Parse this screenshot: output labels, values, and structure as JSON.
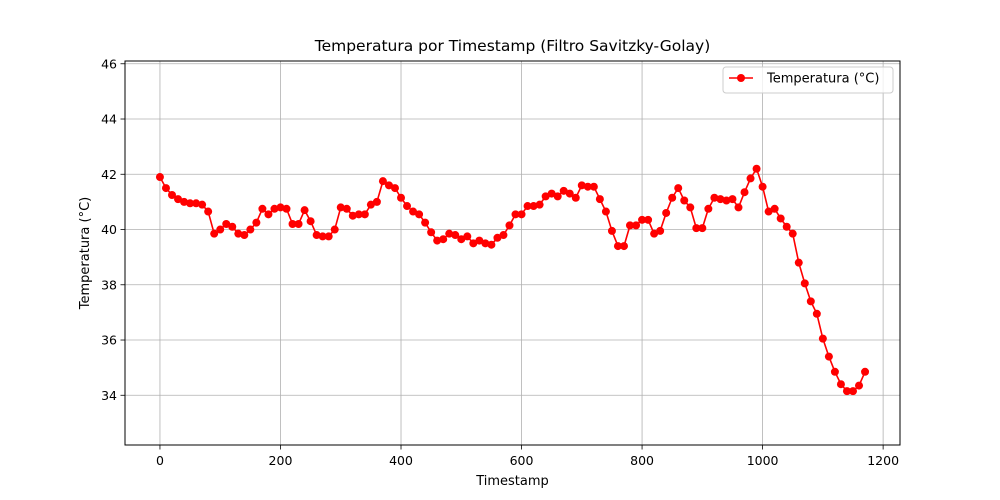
{
  "chart_data": {
    "type": "line",
    "title": "Temperatura por Timestamp (Filtro Savitzky-Golay)",
    "xlabel": "Timestamp",
    "ylabel": "Temperatura (°C)",
    "xlim": [
      -58,
      1228
    ],
    "ylim": [
      32.2,
      46.1
    ],
    "xticks": [
      0,
      200,
      400,
      600,
      800,
      1000,
      1200
    ],
    "yticks": [
      34,
      36,
      38,
      40,
      42,
      44,
      46
    ],
    "grid": true,
    "legend_position": "upper-right",
    "color": "#ff0000",
    "series": [
      {
        "name": "Temperatura (°C)",
        "marker": "circle",
        "x": [
          0,
          10,
          20,
          30,
          40,
          50,
          60,
          70,
          80,
          90,
          100,
          110,
          120,
          130,
          140,
          150,
          160,
          170,
          180,
          190,
          200,
          210,
          220,
          230,
          240,
          250,
          260,
          270,
          280,
          290,
          300,
          310,
          320,
          330,
          340,
          350,
          360,
          370,
          380,
          390,
          400,
          410,
          420,
          430,
          440,
          450,
          460,
          470,
          480,
          490,
          500,
          510,
          520,
          530,
          540,
          550,
          560,
          570,
          580,
          590,
          600,
          610,
          620,
          630,
          640,
          650,
          660,
          670,
          680,
          690,
          700,
          710,
          720,
          730,
          740,
          750,
          760,
          770,
          780,
          790,
          800,
          810,
          820,
          830,
          840,
          850,
          860,
          870,
          880,
          890,
          900,
          910,
          920,
          930,
          940,
          950,
          960,
          970,
          980,
          990,
          1000,
          1010,
          1020,
          1030,
          1040,
          1050,
          1060,
          1070,
          1080,
          1090,
          1100,
          1110,
          1120,
          1130,
          1140,
          1150,
          1160,
          1170
        ],
        "y": [
          41.9,
          41.5,
          41.25,
          41.1,
          41.0,
          40.95,
          40.95,
          40.9,
          40.65,
          39.85,
          40.0,
          40.2,
          40.1,
          39.85,
          39.8,
          40.0,
          40.25,
          40.75,
          40.55,
          40.75,
          40.8,
          40.75,
          40.2,
          40.2,
          40.7,
          40.3,
          39.8,
          39.75,
          39.75,
          40.0,
          40.8,
          40.75,
          40.5,
          40.55,
          40.55,
          40.9,
          41.0,
          41.75,
          41.6,
          41.5,
          41.15,
          40.85,
          40.65,
          40.55,
          40.25,
          39.9,
          39.6,
          39.65,
          39.85,
          39.8,
          39.65,
          39.75,
          39.5,
          39.6,
          39.5,
          39.45,
          39.7,
          39.8,
          40.15,
          40.55,
          40.55,
          40.85,
          40.85,
          40.9,
          41.2,
          41.3,
          41.2,
          41.4,
          41.3,
          41.15,
          41.6,
          41.55,
          41.55,
          41.1,
          40.65,
          39.95,
          39.4,
          39.4,
          40.15,
          40.15,
          40.35,
          40.35,
          39.85,
          39.95,
          40.6,
          41.15,
          41.5,
          41.05,
          40.8,
          40.05,
          40.05,
          40.75,
          41.15,
          41.1,
          41.05,
          41.1,
          40.8,
          41.35,
          41.85,
          42.2,
          41.55,
          40.65,
          40.75,
          40.4,
          40.1,
          39.85,
          38.8,
          38.05,
          37.4,
          36.95,
          36.05,
          35.4,
          34.85,
          34.4,
          34.15,
          34.15,
          34.35,
          34.85
        ]
      }
    ]
  }
}
